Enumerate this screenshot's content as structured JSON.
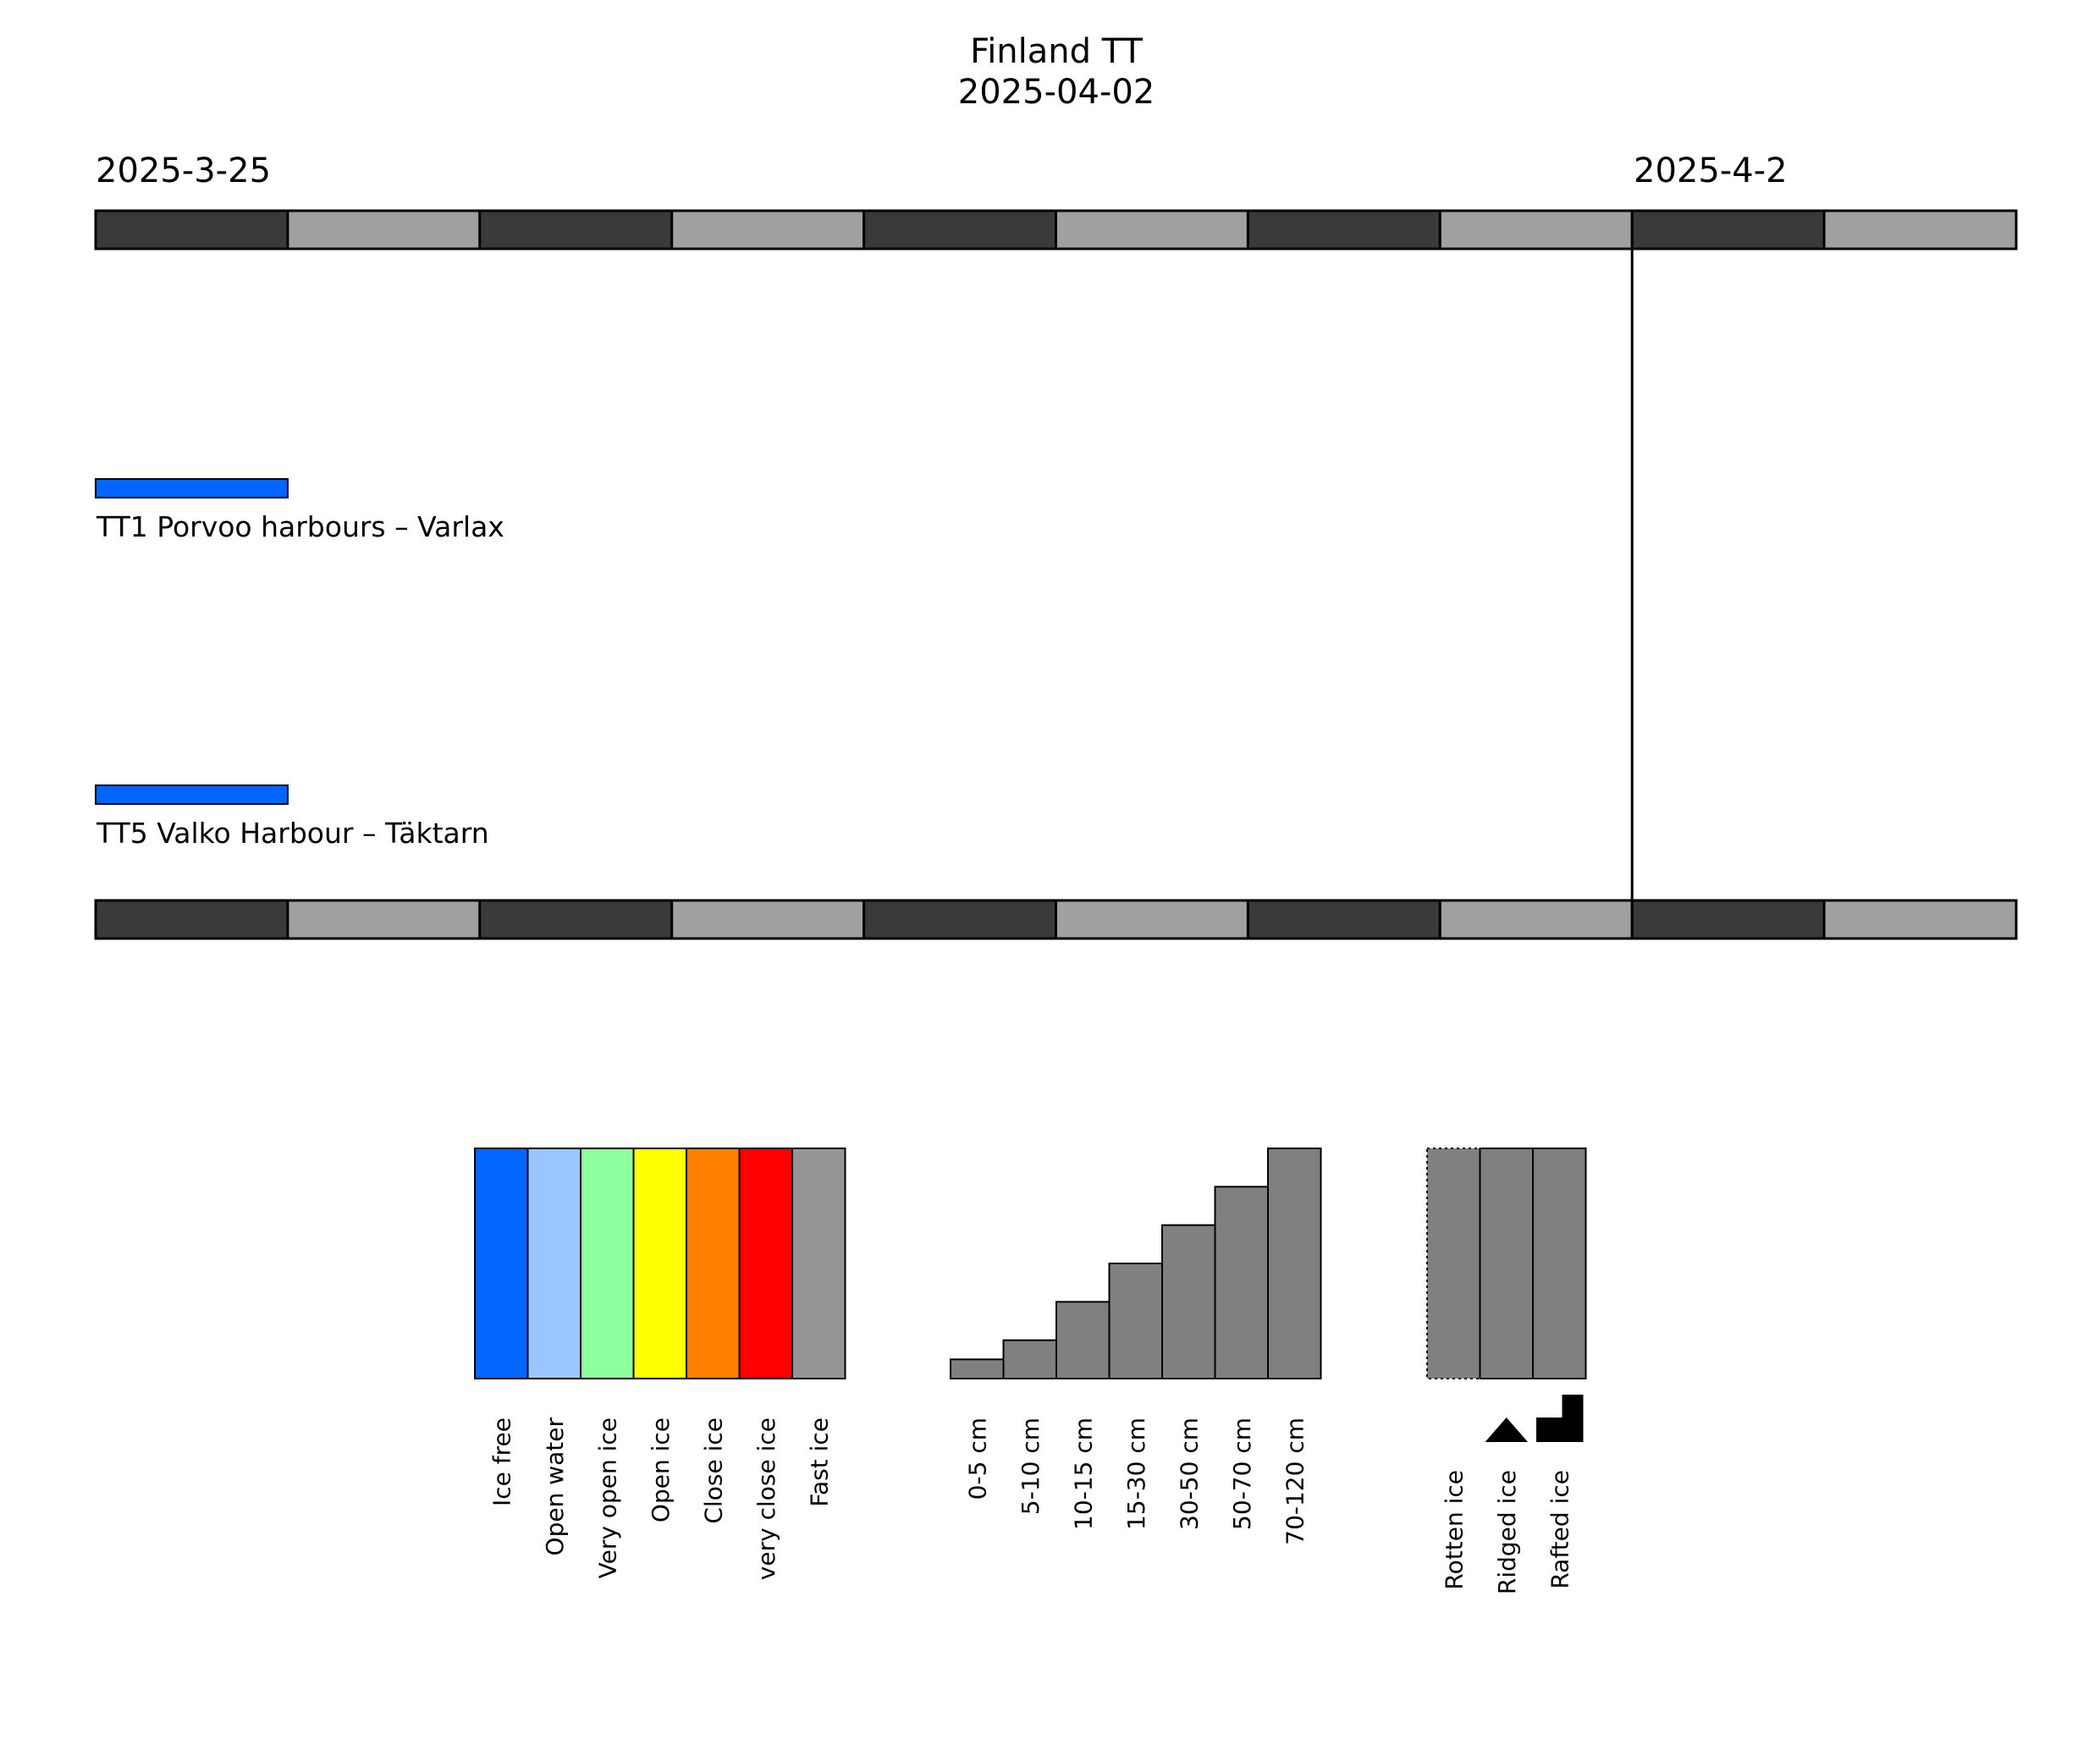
{
  "chart_data": {
    "type": "timeline",
    "title": "Finland TT",
    "subtitle": "2025-04-02",
    "start_label": "2025-3-25",
    "current_label": "2025-4-2",
    "x_range": [
      "2025-03-25",
      "2025-04-04"
    ],
    "current_date": "2025-04-02",
    "day_band_colors": [
      "#3a3a3a",
      "#a0a0a0"
    ],
    "routes": [
      {
        "name": "TT1 Porvoo harbours – Varlax",
        "segments": [
          {
            "start": "2025-03-25",
            "end": "2025-03-26",
            "condition": "Ice free",
            "color": "#0066ff"
          }
        ]
      },
      {
        "name": "TT5 Valko Harbour – Täktarn",
        "segments": [
          {
            "start": "2025-03-25",
            "end": "2025-03-26",
            "condition": "Ice free",
            "color": "#0066ff"
          }
        ]
      }
    ],
    "legend_ice_concentration": [
      {
        "label": "Ice free",
        "color": "#0066ff"
      },
      {
        "label": "Open water",
        "color": "#99c6ff"
      },
      {
        "label": "Very open ice",
        "color": "#8eff9e"
      },
      {
        "label": "Open ice",
        "color": "#ffff00"
      },
      {
        "label": "Close ice",
        "color": "#ff7f00"
      },
      {
        "label": "very close ice",
        "color": "#ff0000"
      },
      {
        "label": "Fast ice",
        "color": "#959595"
      }
    ],
    "legend_ice_thickness": [
      {
        "label": "0-5 cm",
        "level": 1
      },
      {
        "label": "5-10 cm",
        "level": 2
      },
      {
        "label": "10-15 cm",
        "level": 4
      },
      {
        "label": "15-30 cm",
        "level": 6
      },
      {
        "label": "30-50 cm",
        "level": 8
      },
      {
        "label": "50-70 cm",
        "level": 10
      },
      {
        "label": "70-120 cm",
        "level": 12
      }
    ],
    "legend_thickness_max_level": 12,
    "legend_ice_types": [
      {
        "label": "Rotten ice",
        "symbol": "dotted-outline"
      },
      {
        "label": "Ridged ice",
        "symbol": "triangle-icon"
      },
      {
        "label": "Rafted ice",
        "symbol": "step-icon"
      }
    ],
    "legend_bar_color": "#808080"
  }
}
